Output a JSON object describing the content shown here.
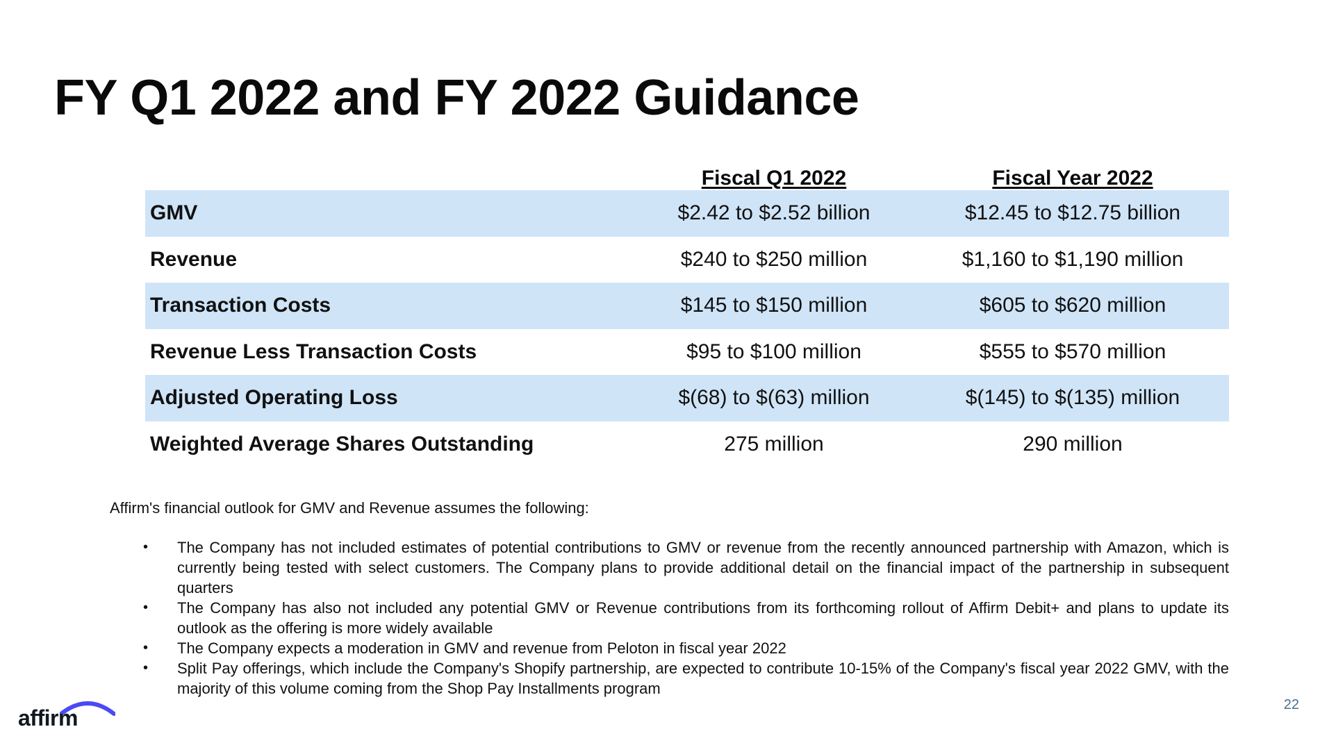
{
  "title": "FY Q1 2022 and FY 2022 Guidance",
  "table": {
    "columns": [
      "",
      "Fiscal Q1 2022",
      "Fiscal Year 2022"
    ],
    "rows": [
      {
        "metric": "GMV",
        "q1": "$2.42 to $2.52 billion",
        "fy": "$12.45 to $12.75 billion"
      },
      {
        "metric": "Revenue",
        "q1": "$240 to $250 million",
        "fy": "$1,160 to $1,190 million"
      },
      {
        "metric": "Transaction Costs",
        "q1": "$145 to $150 million",
        "fy": "$605 to $620 million"
      },
      {
        "metric": "Revenue Less Transaction Costs",
        "q1": "$95 to $100 million",
        "fy": "$555 to $570 million"
      },
      {
        "metric": "Adjusted Operating Loss",
        "q1": "$(68) to $(63) million",
        "fy": "$(145) to $(135) million"
      },
      {
        "metric": "Weighted Average Shares Outstanding",
        "q1": "275 million",
        "fy": "290 million"
      }
    ]
  },
  "assumptions": {
    "intro": "Affirm's financial outlook for GMV and Revenue assumes the following:",
    "bullet_char": "•",
    "items": [
      "The Company has not included estimates of potential contributions to GMV or revenue from the recently announced partnership with Amazon, which is currently being tested with select customers. The Company plans to provide additional detail on the financial impact of the partnership in subsequent quarters",
      "The Company has also not included any potential GMV or Revenue contributions from its forthcoming rollout of Affirm Debit+ and plans to update its outlook as the offering is more widely available",
      "The Company expects a moderation in GMV and revenue from Peloton in fiscal year 2022",
      "Split Pay offerings, which include the Company's Shopify partnership, are expected to contribute 10-15% of the Company's fiscal year 2022 GMV, with the majority of this volume coming from the Shop Pay Installments program"
    ]
  },
  "footer": {
    "logo_text": "affirm",
    "logo_accent_color": "#4a4af4",
    "page_number": "22"
  }
}
